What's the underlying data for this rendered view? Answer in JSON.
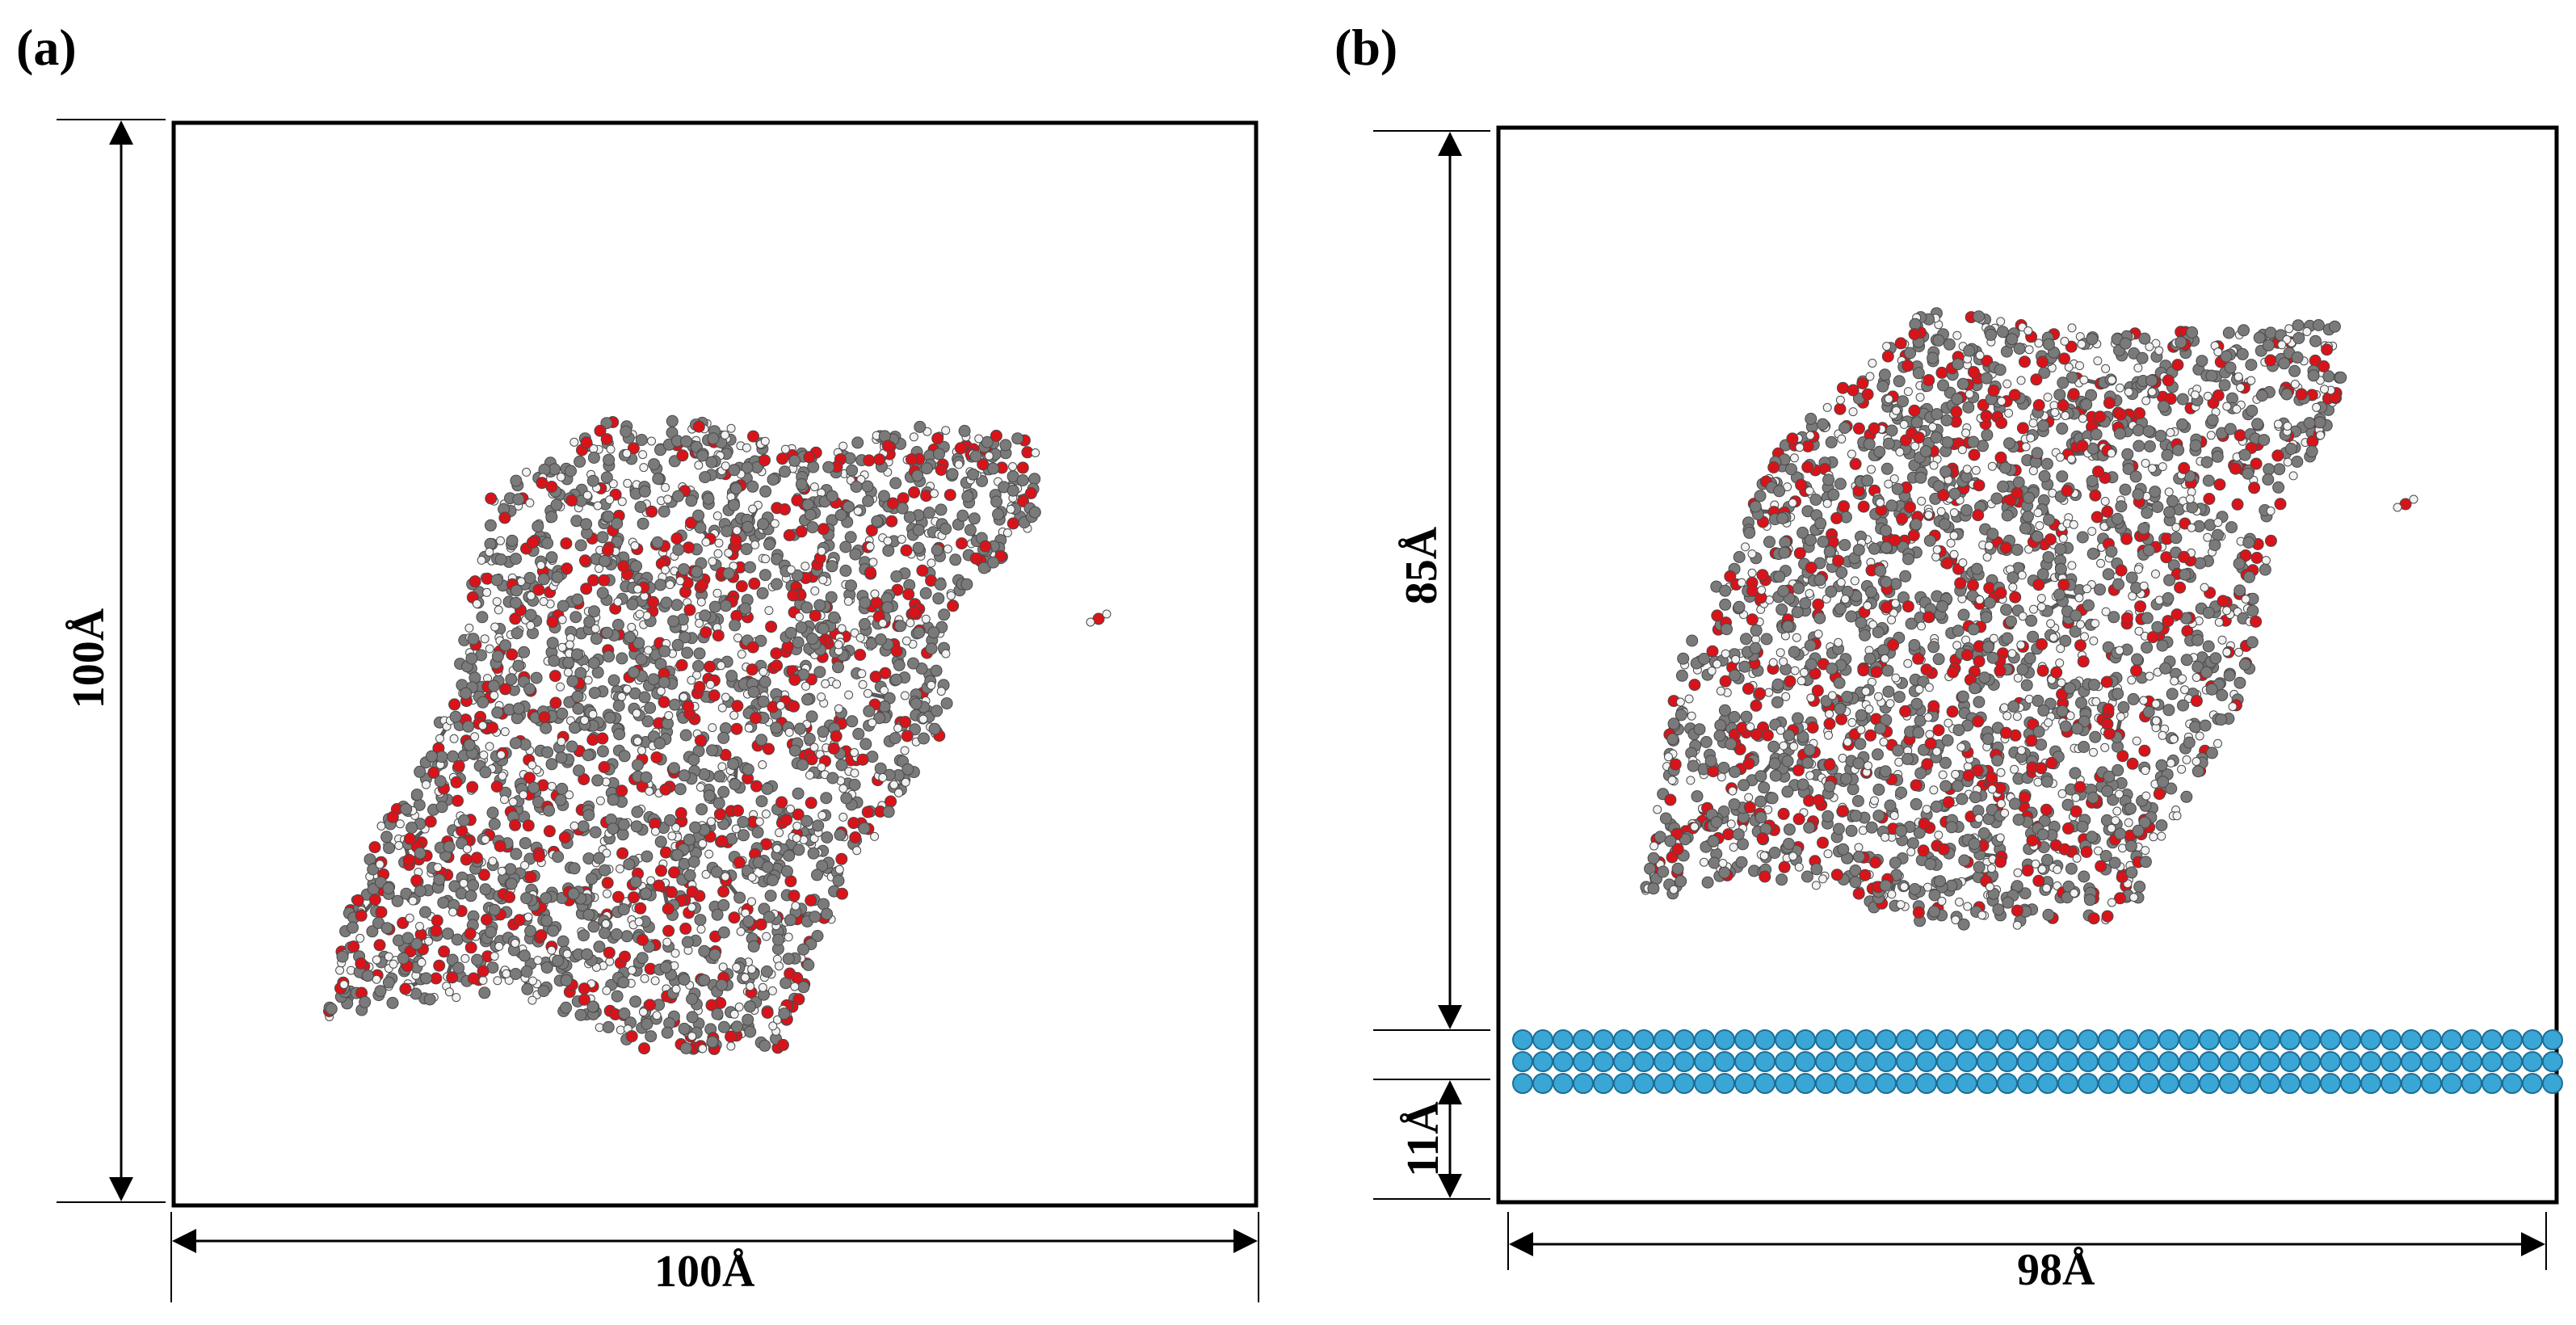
{
  "panels": [
    {
      "label": "(a)",
      "width_label": "100Å",
      "height_label": "100Å",
      "contents": "polymer cluster"
    },
    {
      "label": "(b)",
      "width_label": "98Å",
      "height_label": "85Å",
      "slab_label": "11Å",
      "contents": "polymer cluster above metal slab",
      "slab_layers": 3,
      "slab_atoms_per_layer": 52
    }
  ],
  "colors": {
    "carbon": "#7a7a7a",
    "oxygen": "#d8141a",
    "hydrogen": "#f2f2f2",
    "metal": "#3aa6d6",
    "frame": "#000000"
  }
}
